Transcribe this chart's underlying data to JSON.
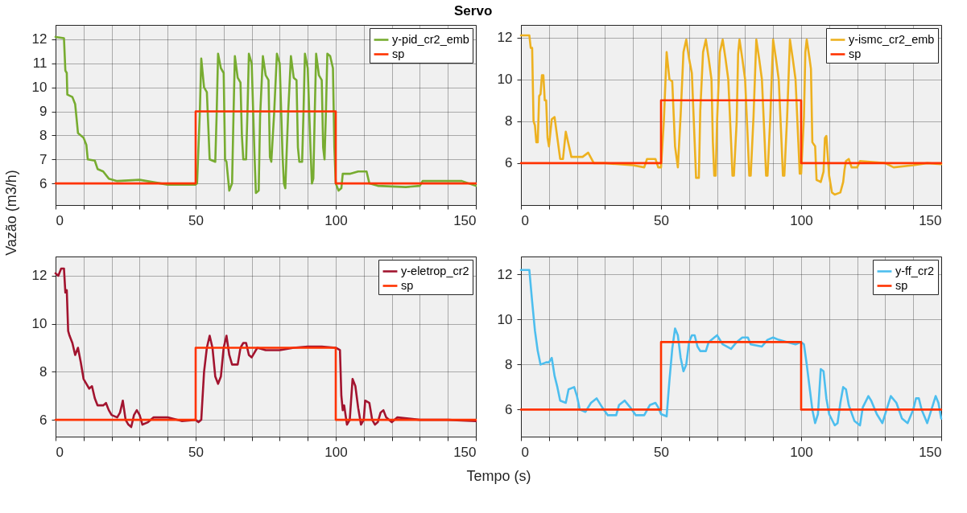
{
  "chart_data": [
    {
      "type": "line",
      "title": "Servo",
      "ylabel": "Vazão (m3/h)",
      "xlim": [
        0,
        150
      ],
      "ylim": [
        5.1,
        12.6
      ],
      "xticks": [
        0,
        {
          "value": 10,
          "label": null
        },
        {
          "value": 20,
          "label": null
        },
        {
          "value": 30,
          "label": null
        },
        {
          "value": 40,
          "label": null
        },
        50,
        {
          "value": 60,
          "label": null
        },
        {
          "value": 70,
          "label": null
        },
        {
          "value": 80,
          "label": null
        },
        {
          "value": 90,
          "label": null
        },
        100,
        {
          "value": 110,
          "label": null
        },
        {
          "value": 120,
          "label": null
        },
        {
          "value": 130,
          "label": null
        },
        {
          "value": 140,
          "label": null
        },
        150
      ],
      "yticks": [
        6,
        7,
        8,
        9,
        10,
        11,
        12
      ],
      "grid": true,
      "legend": "top right",
      "series": [
        {
          "name": "y-pid_cr2_emb",
          "color": "#77ac30",
          "x": [
            0,
            3,
            3.5,
            4,
            4.2,
            6,
            7,
            7.5,
            8,
            10,
            11,
            11.5,
            14,
            15,
            17,
            19,
            22,
            30,
            35,
            40,
            50,
            50.5,
            51.5,
            52,
            53,
            54,
            55,
            57,
            57.5,
            58,
            59,
            60,
            60.5,
            61,
            62,
            63,
            63.5,
            64,
            65,
            66,
            66.5,
            67,
            68,
            68.5,
            69,
            70,
            71,
            71.5,
            72.5,
            73,
            74,
            75,
            76,
            76.5,
            77,
            78,
            79,
            80,
            81,
            81.5,
            82,
            83,
            84,
            85,
            86,
            86.5,
            87,
            88,
            88.5,
            89,
            90,
            91,
            91.5,
            92,
            92.5,
            93,
            94,
            95,
            95.5,
            96,
            96.5,
            97,
            98,
            99,
            99.5,
            100,
            101,
            102,
            102.5,
            105,
            108,
            111,
            112,
            115,
            125,
            130,
            131,
            140,
            145,
            150
          ],
          "values": [
            12.1,
            12.05,
            10.7,
            10.6,
            9.7,
            9.6,
            9.3,
            8.7,
            8.1,
            7.9,
            7.6,
            7.0,
            6.95,
            6.6,
            6.5,
            6.2,
            6.1,
            6.15,
            6.05,
            5.95,
            5.95,
            6.0,
            9.0,
            11.2,
            10.0,
            9.8,
            7.0,
            6.9,
            8.9,
            11.4,
            10.8,
            10.6,
            7.0,
            6.9,
            5.7,
            6.0,
            8.8,
            11.3,
            10.4,
            10.2,
            8.0,
            7.0,
            7.0,
            9.0,
            11.4,
            11.0,
            7.2,
            5.6,
            5.7,
            8.8,
            11.3,
            10.5,
            10.3,
            7.1,
            6.9,
            8.9,
            11.4,
            11.0,
            7.2,
            6.0,
            5.8,
            8.9,
            11.3,
            10.4,
            10.3,
            7.5,
            6.9,
            6.9,
            9.0,
            11.4,
            10.8,
            7.4,
            6.0,
            6.2,
            8.9,
            11.4,
            10.5,
            10.3,
            7.5,
            7.0,
            9.0,
            11.4,
            11.3,
            10.8,
            7.5,
            6.0,
            5.7,
            5.8,
            6.4,
            6.4,
            6.5,
            6.5,
            6.0,
            5.9,
            5.85,
            5.9,
            6.1,
            6.1,
            6.1,
            5.9
          ]
        },
        {
          "name": "sp",
          "color": "#ff3300",
          "x": [
            0,
            50,
            50,
            100,
            100,
            150
          ],
          "values": [
            6,
            6,
            9,
            9,
            6,
            6
          ]
        }
      ]
    },
    {
      "type": "line",
      "xlim": [
        0,
        150
      ],
      "ylim": [
        4.0,
        12.6
      ],
      "xticks": [
        0,
        {
          "value": 10,
          "label": null
        },
        {
          "value": 20,
          "label": null
        },
        {
          "value": 30,
          "label": null
        },
        {
          "value": 40,
          "label": null
        },
        50,
        {
          "value": 60,
          "label": null
        },
        {
          "value": 70,
          "label": null
        },
        {
          "value": 80,
          "label": null
        },
        {
          "value": 90,
          "label": null
        },
        100,
        {
          "value": 110,
          "label": null
        },
        {
          "value": 120,
          "label": null
        },
        {
          "value": 130,
          "label": null
        },
        {
          "value": 140,
          "label": null
        },
        150
      ],
      "yticks": [
        6,
        8,
        10,
        12
      ],
      "grid": true,
      "legend": "top right",
      "series": [
        {
          "name": "y-ismc_cr2_emb",
          "color": "#edb120",
          "x": [
            0,
            3,
            3.5,
            4,
            4.5,
            5,
            5.5,
            6,
            6.5,
            7,
            7.5,
            8,
            8.5,
            9,
            9.5,
            10,
            11,
            12,
            13,
            14,
            15,
            16,
            17,
            18,
            22,
            24,
            26,
            30,
            40,
            44,
            45,
            48,
            49,
            50,
            51,
            52,
            53,
            54,
            55,
            56,
            57,
            58,
            59,
            60,
            61,
            62,
            62.5,
            63.5,
            64,
            65,
            66,
            67,
            68,
            68.5,
            69,
            69.5,
            70,
            71,
            72,
            73,
            74,
            75,
            75.5,
            76,
            77,
            77.5,
            78,
            79,
            80,
            81,
            81.5,
            82,
            83,
            84,
            85,
            86,
            87,
            87.5,
            88,
            89,
            90,
            91,
            92,
            93,
            93.5,
            94,
            95,
            96,
            97,
            98,
            99,
            99.5,
            100,
            101,
            101.5,
            102,
            103,
            103.5,
            104,
            105,
            105.5,
            107,
            108,
            108.5,
            109,
            110,
            111,
            112,
            114,
            115,
            115.5,
            116,
            117,
            118,
            120,
            121,
            130,
            133,
            140,
            145,
            150
          ],
          "values": [
            12.1,
            12.1,
            11.5,
            11.5,
            8.0,
            7.8,
            7.0,
            7.0,
            9.2,
            9.3,
            10.2,
            10.2,
            9.0,
            9.0,
            7.2,
            6.8,
            8.1,
            8.2,
            7.2,
            6.2,
            6.2,
            7.5,
            6.9,
            6.3,
            6.3,
            6.5,
            6.0,
            6.0,
            5.9,
            5.8,
            6.2,
            6.2,
            5.8,
            5.8,
            8.0,
            11.3,
            10.0,
            9.9,
            6.8,
            5.8,
            8.3,
            11.3,
            11.9,
            11.0,
            10.3,
            7.0,
            5.3,
            5.3,
            8.5,
            11.3,
            11.9,
            11.0,
            10.0,
            7.0,
            5.4,
            5.4,
            8.0,
            11.3,
            11.9,
            11.0,
            10.0,
            7.0,
            5.4,
            5.4,
            8.0,
            11.2,
            11.9,
            11.0,
            10.0,
            7.0,
            5.4,
            5.4,
            8.2,
            11.9,
            11.0,
            10.0,
            7.0,
            5.4,
            5.4,
            8.2,
            11.9,
            11.0,
            10.0,
            7.0,
            5.4,
            5.4,
            8.2,
            11.9,
            11.0,
            10.0,
            7.0,
            5.5,
            5.5,
            8.2,
            11.3,
            11.9,
            11.0,
            10.5,
            7.0,
            6.8,
            5.2,
            5.1,
            5.6,
            7.2,
            7.3,
            5.4,
            4.6,
            4.5,
            4.6,
            5.1,
            5.7,
            6.1,
            6.2,
            5.8,
            5.8,
            6.1,
            6.0,
            5.8,
            5.9,
            6.0,
            5.95
          ]
        },
        {
          "name": "sp",
          "color": "#ff3300",
          "x": [
            0,
            50,
            50,
            100,
            100,
            150
          ],
          "values": [
            6,
            6,
            9,
            9,
            6,
            6
          ]
        }
      ]
    },
    {
      "type": "line",
      "xlabel": "Tempo (s)",
      "xlim": [
        0,
        150
      ],
      "ylim": [
        5.3,
        12.8
      ],
      "xticks": [
        0,
        {
          "value": 10,
          "label": null
        },
        {
          "value": 20,
          "label": null
        },
        {
          "value": 30,
          "label": null
        },
        {
          "value": 40,
          "label": null
        },
        50,
        {
          "value": 60,
          "label": null
        },
        {
          "value": 70,
          "label": null
        },
        {
          "value": 80,
          "label": null
        },
        {
          "value": 90,
          "label": null
        },
        100,
        {
          "value": 110,
          "label": null
        },
        {
          "value": 120,
          "label": null
        },
        {
          "value": 130,
          "label": null
        },
        {
          "value": 140,
          "label": null
        },
        150
      ],
      "yticks": [
        6,
        8,
        10,
        12
      ],
      "grid": true,
      "legend": "top right",
      "series": [
        {
          "name": "y-eletrop_cr2",
          "color": "#a2142f",
          "x": [
            0,
            1,
            2,
            3,
            3.5,
            4,
            4.5,
            5,
            6,
            7,
            8,
            9,
            10,
            11,
            12,
            13,
            14,
            15,
            17,
            18,
            19,
            20,
            22,
            23,
            24,
            25,
            26,
            27,
            28,
            29,
            30,
            31,
            33,
            35,
            40,
            45,
            50,
            51,
            52,
            53,
            54,
            55,
            56,
            57,
            58,
            59,
            60,
            61,
            62,
            63,
            65,
            66,
            67,
            68,
            69,
            70,
            72,
            75,
            80,
            85,
            90,
            95,
            100,
            101.5,
            102,
            102.5,
            103,
            104,
            105,
            106,
            107,
            108,
            109,
            110,
            110.5,
            112,
            113,
            114,
            115,
            116,
            117,
            118,
            120,
            122,
            130,
            140,
            150
          ],
          "values": [
            12.1,
            12.0,
            12.3,
            12.3,
            11.3,
            11.4,
            9.7,
            9.5,
            9.2,
            8.7,
            9.0,
            8.4,
            7.7,
            7.5,
            7.3,
            7.4,
            6.9,
            6.6,
            6.6,
            6.7,
            6.4,
            6.2,
            6.1,
            6.3,
            6.8,
            6.0,
            5.8,
            5.7,
            6.2,
            6.4,
            6.2,
            5.8,
            5.9,
            6.1,
            6.1,
            5.95,
            6.0,
            5.9,
            6.0,
            8.0,
            9.0,
            9.5,
            9.0,
            7.8,
            7.5,
            7.8,
            9.0,
            9.5,
            8.7,
            8.3,
            8.3,
            9.0,
            9.2,
            9.2,
            8.7,
            8.6,
            9.0,
            8.9,
            8.9,
            9.0,
            9.05,
            9.05,
            9.0,
            8.9,
            7.0,
            6.4,
            6.6,
            5.8,
            6.0,
            7.7,
            7.4,
            6.5,
            5.8,
            6.0,
            6.8,
            6.7,
            6.0,
            5.8,
            5.9,
            6.3,
            6.4,
            6.1,
            5.9,
            6.1,
            6.0,
            6.0,
            5.95
          ]
        },
        {
          "name": "sp",
          "color": "#ff3300",
          "x": [
            0,
            50,
            50,
            100,
            100,
            150
          ],
          "values": [
            6,
            6,
            9,
            9,
            6,
            6
          ]
        }
      ]
    },
    {
      "type": "line",
      "xlim": [
        0,
        150
      ],
      "ylim": [
        4.8,
        12.8
      ],
      "xticks": [
        0,
        {
          "value": 10,
          "label": null
        },
        {
          "value": 20,
          "label": null
        },
        {
          "value": 30,
          "label": null
        },
        {
          "value": 40,
          "label": null
        },
        50,
        {
          "value": 60,
          "label": null
        },
        {
          "value": 70,
          "label": null
        },
        {
          "value": 80,
          "label": null
        },
        {
          "value": 90,
          "label": null
        },
        100,
        {
          "value": 110,
          "label": null
        },
        {
          "value": 120,
          "label": null
        },
        {
          "value": 130,
          "label": null
        },
        {
          "value": 140,
          "label": null
        },
        150
      ],
      "yticks": [
        6,
        8,
        10,
        12
      ],
      "grid": true,
      "legend": "top right",
      "series": [
        {
          "name": "y-ff_cr2",
          "color": "#4dbeee",
          "x": [
            0,
            3,
            4,
            5,
            6,
            7,
            9,
            10,
            11,
            12,
            13,
            14,
            16,
            17,
            19,
            20,
            21,
            23,
            25,
            27,
            29,
            31,
            34,
            35,
            37,
            39,
            41,
            44,
            46,
            48,
            49,
            50,
            52,
            53,
            54,
            55,
            56,
            57,
            58,
            59,
            60,
            61,
            62,
            63,
            64,
            66,
            67,
            69,
            70,
            72,
            75,
            77,
            79,
            81,
            82,
            86,
            88,
            90,
            92,
            95,
            98,
            100,
            101,
            102,
            103,
            104,
            105,
            106,
            106.5,
            107,
            108,
            109,
            110,
            112,
            113,
            114,
            115,
            116,
            117,
            119,
            121,
            122,
            124,
            125,
            127,
            129,
            131,
            132,
            134,
            136,
            138,
            140,
            141,
            142,
            143,
            145,
            147,
            148,
            149,
            150
          ],
          "values": [
            12.2,
            12.2,
            10.8,
            9.5,
            8.6,
            8.0,
            8.1,
            8.1,
            8.3,
            7.5,
            7.0,
            6.4,
            6.3,
            6.9,
            7.0,
            6.6,
            6.0,
            5.9,
            6.3,
            6.5,
            6.1,
            5.75,
            5.75,
            6.2,
            6.4,
            6.1,
            5.75,
            5.75,
            6.2,
            6.3,
            6.1,
            5.8,
            5.7,
            7.3,
            8.7,
            9.6,
            9.3,
            8.3,
            7.7,
            8.0,
            9.0,
            9.3,
            9.3,
            8.8,
            8.6,
            8.6,
            9.0,
            9.2,
            9.3,
            8.9,
            8.7,
            9.0,
            9.2,
            9.2,
            8.9,
            8.8,
            9.1,
            9.2,
            9.1,
            9.0,
            8.9,
            9.0,
            8.9,
            8.0,
            7.0,
            6.0,
            5.4,
            5.8,
            6.8,
            7.8,
            7.7,
            6.5,
            5.8,
            5.3,
            5.4,
            6.3,
            7.0,
            6.9,
            6.2,
            5.5,
            5.3,
            6.1,
            6.6,
            6.4,
            5.8,
            5.4,
            6.2,
            6.6,
            6.3,
            5.6,
            5.4,
            6.0,
            6.5,
            6.5,
            6.0,
            5.4,
            6.2,
            6.6,
            6.3,
            5.6
          ]
        },
        {
          "name": "sp",
          "color": "#ff3300",
          "x": [
            0,
            50,
            50,
            100,
            100,
            150
          ],
          "values": [
            6,
            6,
            9,
            9,
            6,
            6
          ]
        }
      ]
    }
  ]
}
